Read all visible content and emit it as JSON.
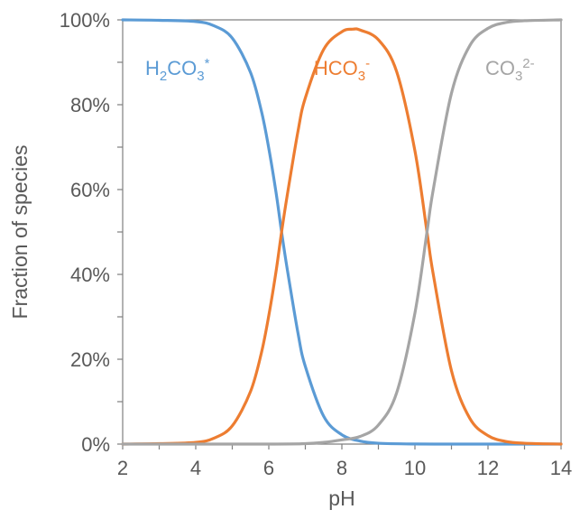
{
  "chart_data": {
    "type": "line",
    "title": "",
    "xlabel": "pH",
    "ylabel": "Fraction of species",
    "xlim": [
      2,
      14
    ],
    "ylim": [
      0,
      100
    ],
    "x_ticks": [
      {
        "value": 2,
        "label": "2"
      },
      {
        "value": 4,
        "label": "4"
      },
      {
        "value": 6,
        "label": "6"
      },
      {
        "value": 8,
        "label": "8"
      },
      {
        "value": 10,
        "label": "10"
      },
      {
        "value": 12,
        "label": "12"
      },
      {
        "value": 14,
        "label": "14"
      }
    ],
    "y_ticks": [
      {
        "value": 0,
        "label": "0%"
      },
      {
        "value": 20,
        "label": "20%"
      },
      {
        "value": 40,
        "label": "40%"
      },
      {
        "value": 60,
        "label": "60%"
      },
      {
        "value": 80,
        "label": "80%"
      },
      {
        "value": 100,
        "label": "100%"
      }
    ],
    "grid": false,
    "legend": "inline labels",
    "series": [
      {
        "label_main": "H",
        "label_sub": "2",
        "label_mid": "CO",
        "label_sub2": "3",
        "label_sup": "*",
        "color": "#5b9bd5",
        "label_pos": {
          "x": 3.5,
          "y": 87
        },
        "points": [
          [
            2,
            100
          ],
          [
            3,
            99.9
          ],
          [
            4,
            99.6
          ],
          [
            4.5,
            98.6
          ],
          [
            5,
            95.7
          ],
          [
            5.5,
            87.6
          ],
          [
            5.8,
            78.4
          ],
          [
            6,
            69.7
          ],
          [
            6.2,
            59.2
          ],
          [
            6.35,
            50.0
          ],
          [
            6.5,
            41.5
          ],
          [
            6.8,
            26.1
          ],
          [
            7,
            18.3
          ],
          [
            7.5,
            6.6
          ],
          [
            8,
            2.2
          ],
          [
            8.5,
            0.7
          ],
          [
            9,
            0.2
          ],
          [
            10,
            0.02
          ],
          [
            11,
            0
          ],
          [
            12,
            0
          ],
          [
            13,
            0
          ],
          [
            14,
            0
          ]
        ]
      },
      {
        "label_main": "HCO",
        "label_sub": "3",
        "label_sup": "-",
        "color": "#ed7d31",
        "label_pos": {
          "x": 8,
          "y": 87
        },
        "points": [
          [
            2,
            0
          ],
          [
            3,
            0.1
          ],
          [
            4,
            0.4
          ],
          [
            4.5,
            1.4
          ],
          [
            5,
            4.3
          ],
          [
            5.5,
            12.4
          ],
          [
            5.8,
            21.6
          ],
          [
            6,
            30.3
          ],
          [
            6.2,
            40.8
          ],
          [
            6.35,
            50.0
          ],
          [
            6.5,
            58.4
          ],
          [
            6.8,
            73.8
          ],
          [
            7,
            81.6
          ],
          [
            7.5,
            93.0
          ],
          [
            8,
            97.2
          ],
          [
            8.3,
            97.8
          ],
          [
            8.5,
            97.6
          ],
          [
            9,
            95.3
          ],
          [
            9.5,
            87.8
          ],
          [
            10,
            69.1
          ],
          [
            10.33,
            50.0
          ],
          [
            10.5,
            40.1
          ],
          [
            11,
            17.3
          ],
          [
            11.5,
            6.1
          ],
          [
            12,
            2.0
          ],
          [
            12.5,
            0.6
          ],
          [
            13,
            0.2
          ],
          [
            14,
            0
          ]
        ]
      },
      {
        "label_main": "CO",
        "label_sub": "3",
        "label_sup": "2-",
        "color": "#a5a5a5",
        "label_pos": {
          "x": 12.6,
          "y": 87
        },
        "points": [
          [
            2,
            0
          ],
          [
            6,
            0
          ],
          [
            7,
            0.1
          ],
          [
            7.5,
            0.4
          ],
          [
            8,
            1.0
          ],
          [
            8.5,
            1.8
          ],
          [
            9,
            4.5
          ],
          [
            9.5,
            12.1
          ],
          [
            10,
            30.9
          ],
          [
            10.33,
            50.0
          ],
          [
            10.5,
            59.9
          ],
          [
            11,
            82.7
          ],
          [
            11.5,
            93.9
          ],
          [
            12,
            98.0
          ],
          [
            12.5,
            99.4
          ],
          [
            13,
            99.8
          ],
          [
            14,
            100
          ]
        ]
      }
    ]
  }
}
